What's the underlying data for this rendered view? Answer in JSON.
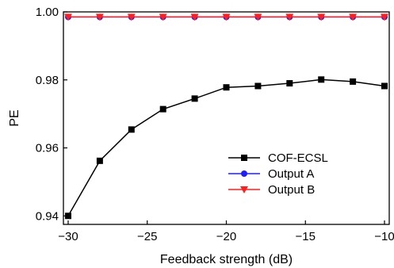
{
  "chart_data": {
    "type": "line",
    "title": "",
    "xlabel": "Feedback strength (dB)",
    "ylabel": "PE",
    "xlim": [
      -30.3,
      -9.7
    ],
    "ylim": [
      0.9375,
      1.0
    ],
    "x_ticks": [
      -30,
      -25,
      -20,
      -15,
      -10
    ],
    "x_tick_labels": [
      "−30",
      "−25",
      "−20",
      "−15",
      "−10"
    ],
    "y_ticks": [
      0.94,
      0.96,
      0.98,
      1.0
    ],
    "y_tick_labels": [
      "0.94",
      "0.96",
      "0.98",
      "1.00"
    ],
    "x": [
      -30,
      -28,
      -26,
      -24,
      -22,
      -20,
      -18,
      -16,
      -14,
      -12,
      -10
    ],
    "series": [
      {
        "name": "COF-ECSL",
        "color": "#000000",
        "marker": "square",
        "values": [
          0.94,
          0.9562,
          0.9654,
          0.9714,
          0.9745,
          0.9778,
          0.9782,
          0.979,
          0.9801,
          0.9795,
          0.9782
        ]
      },
      {
        "name": "Output A",
        "color": "#1f1fff",
        "marker": "circle",
        "values": [
          0.9985,
          0.9985,
          0.9985,
          0.9985,
          0.9985,
          0.9985,
          0.9985,
          0.9985,
          0.9985,
          0.9985,
          0.9985
        ]
      },
      {
        "name": "Output B",
        "color": "#ff1f1f",
        "marker": "triangle-down",
        "values": [
          0.9985,
          0.9985,
          0.9985,
          0.9985,
          0.9985,
          0.9985,
          0.9985,
          0.9985,
          0.9985,
          0.9985,
          0.9985
        ]
      }
    ],
    "legend_position": "lower-right",
    "grid": false
  }
}
